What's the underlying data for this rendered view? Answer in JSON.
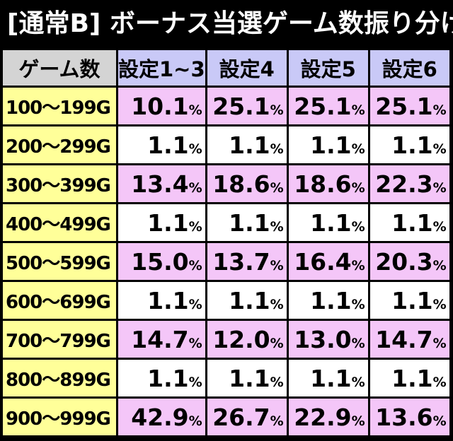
{
  "title": "[通常B] ボーナス当選ゲーム数振り分け",
  "headers": [
    "ゲーム数",
    "設定1~3",
    "設定4",
    "設定5",
    "設定6"
  ],
  "percent_unit": "%",
  "colors": {
    "background": "#000000",
    "header_corner": "#d4d4d4",
    "header_setting": "#c9c9f7",
    "label_column": "#ffff99",
    "row_highlight": "#f4c6f8",
    "row_plain": "#ffffff"
  },
  "rows": [
    {
      "label": "100〜199G",
      "values": [
        "10.1",
        "25.1",
        "25.1",
        "25.1"
      ]
    },
    {
      "label": "200〜299G",
      "values": [
        "1.1",
        "1.1",
        "1.1",
        "1.1"
      ]
    },
    {
      "label": "300〜399G",
      "values": [
        "13.4",
        "18.6",
        "18.6",
        "22.3"
      ]
    },
    {
      "label": "400〜499G",
      "values": [
        "1.1",
        "1.1",
        "1.1",
        "1.1"
      ]
    },
    {
      "label": "500〜599G",
      "values": [
        "15.0",
        "13.7",
        "16.4",
        "20.3"
      ]
    },
    {
      "label": "600〜699G",
      "values": [
        "1.1",
        "1.1",
        "1.1",
        "1.1"
      ]
    },
    {
      "label": "700〜799G",
      "values": [
        "14.7",
        "12.0",
        "13.0",
        "14.7"
      ]
    },
    {
      "label": "800〜899G",
      "values": [
        "1.1",
        "1.1",
        "1.1",
        "1.1"
      ]
    },
    {
      "label": "900〜999G",
      "values": [
        "42.9",
        "26.7",
        "22.9",
        "13.6"
      ]
    }
  ]
}
